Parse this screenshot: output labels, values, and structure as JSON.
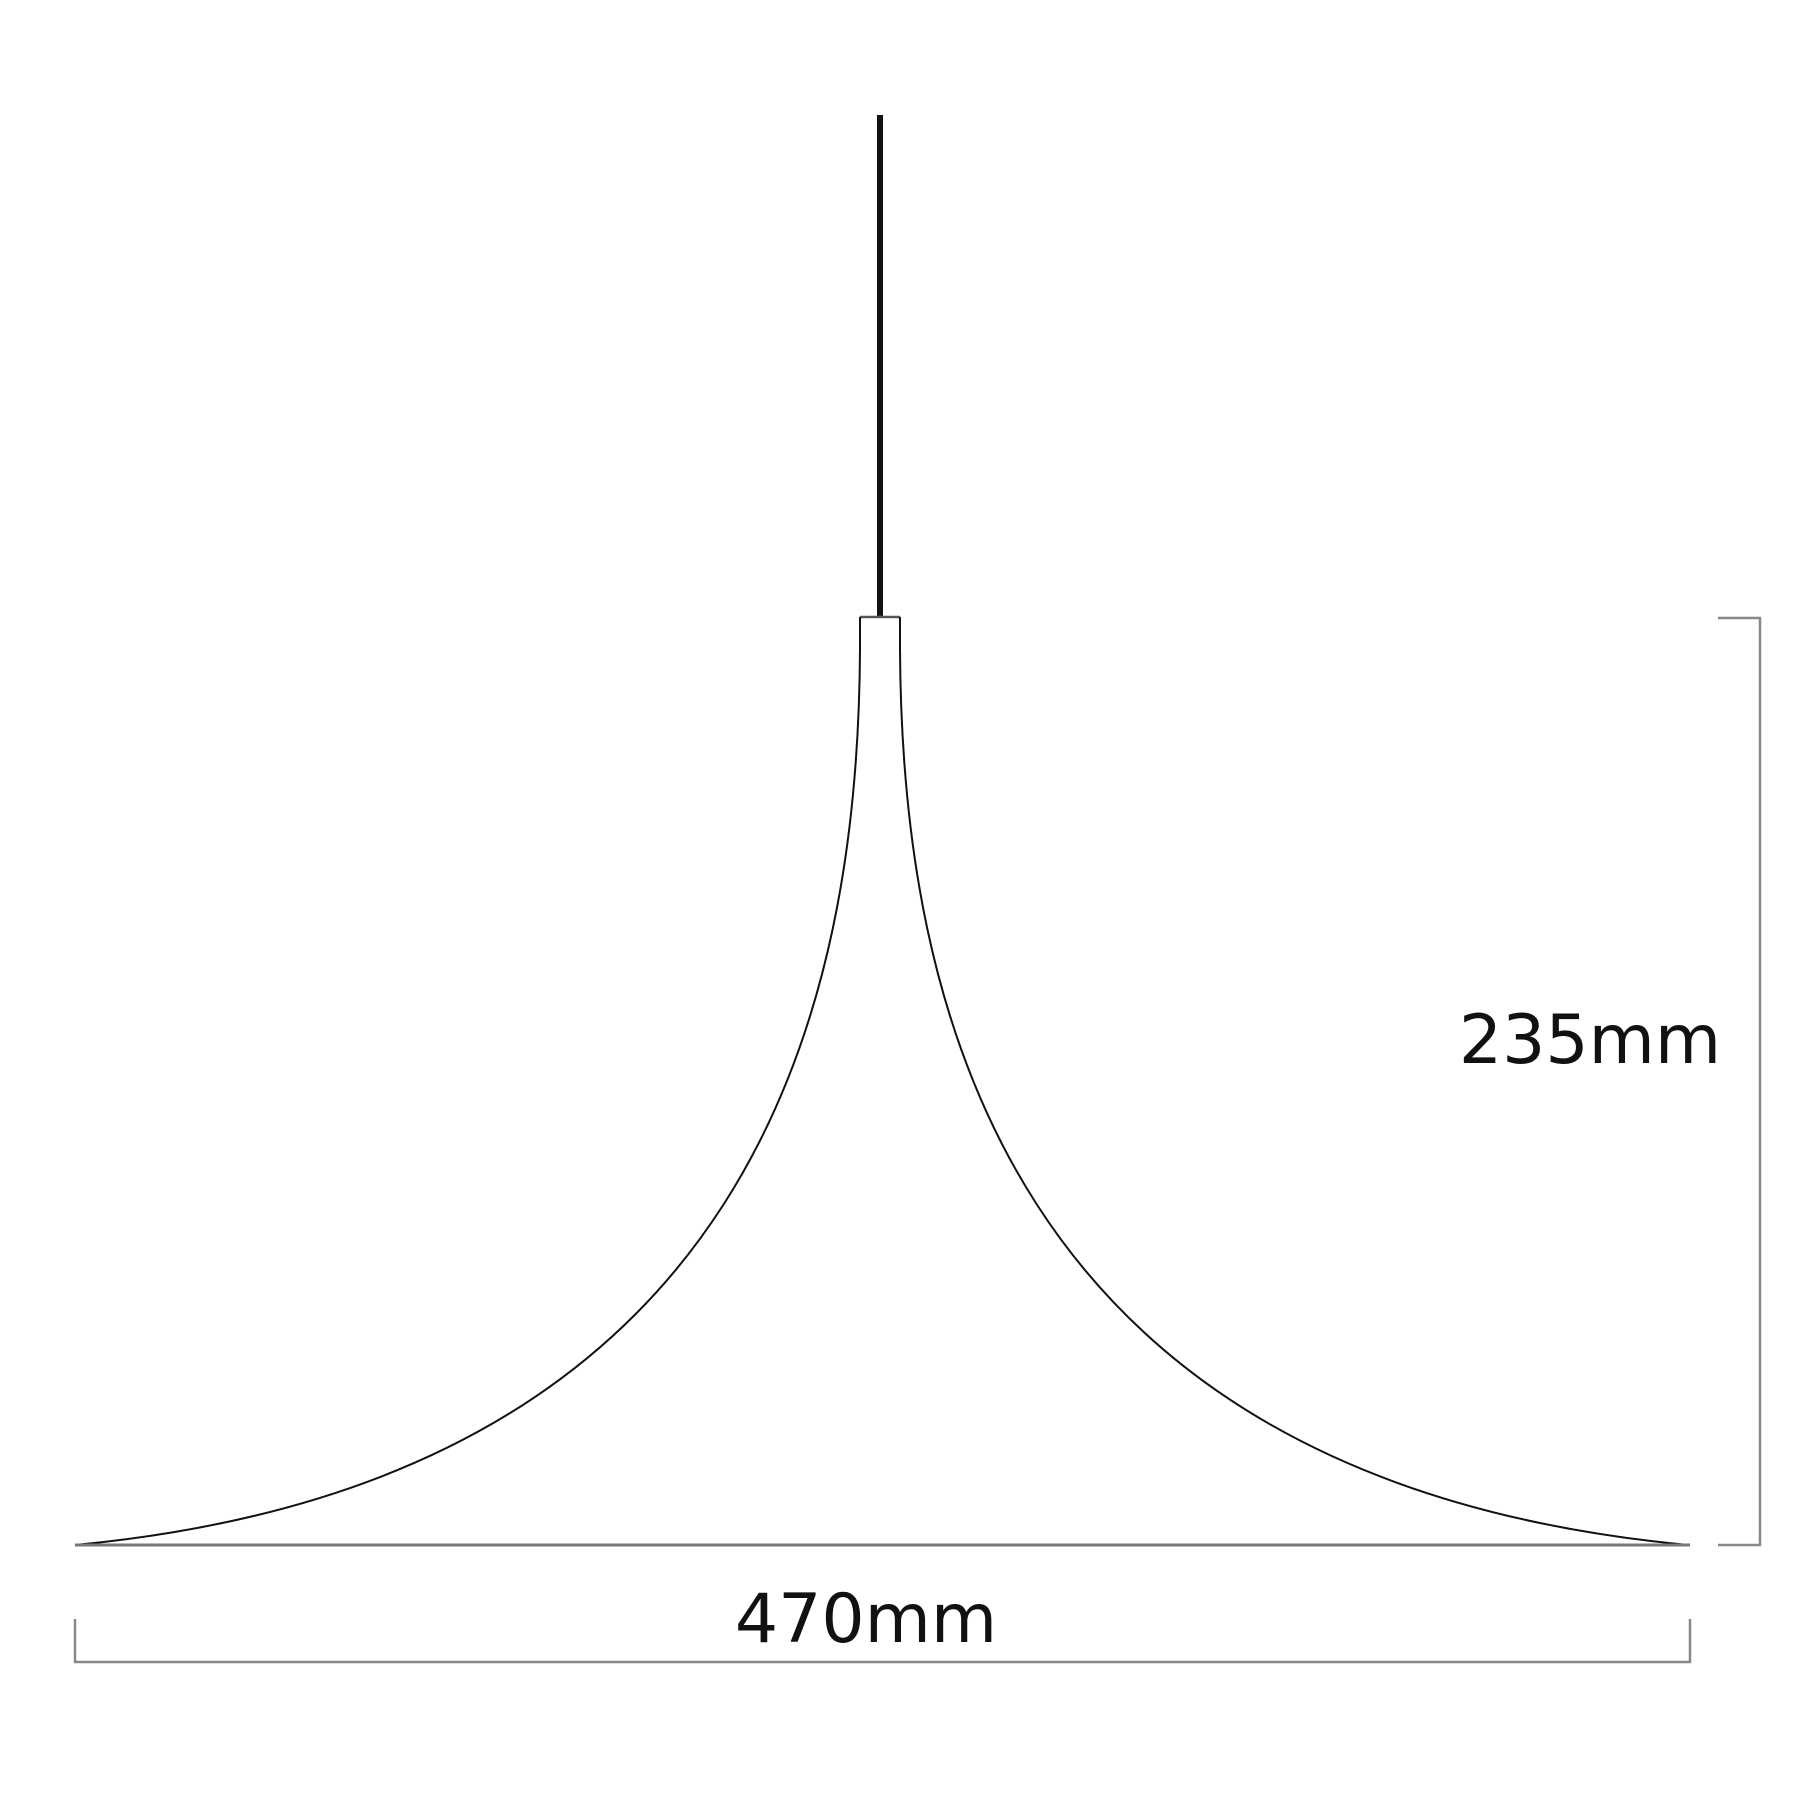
{
  "drawing": {
    "height_label": "235mm",
    "width_label": "470mm",
    "line_color": "#111111",
    "dimension_color": "#777777"
  }
}
